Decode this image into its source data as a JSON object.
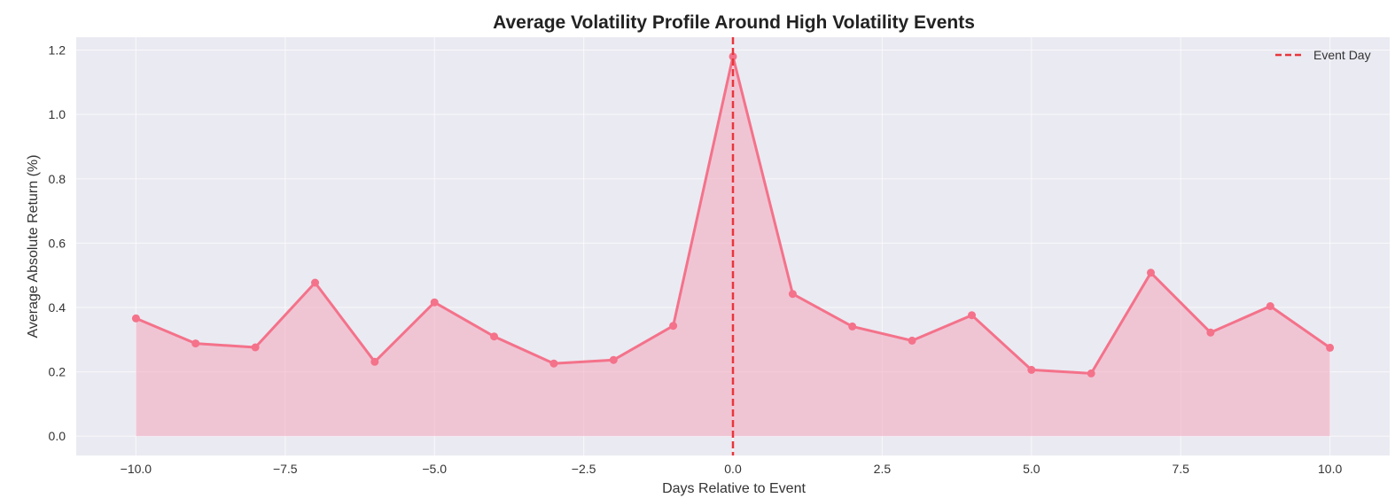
{
  "chart_data": {
    "type": "line",
    "title": "Average Volatility Profile Around High Volatility Events",
    "xlabel": "Days Relative to Event",
    "ylabel": "Average Absolute Return (%)",
    "xlim": [
      -11,
      11
    ],
    "ylim": [
      -0.06,
      1.24
    ],
    "xticks": [
      -10,
      -7.5,
      -5,
      -2.5,
      0,
      2.5,
      5,
      7.5,
      10
    ],
    "xtick_labels": [
      "−10.0",
      "−7.5",
      "−5.0",
      "−2.5",
      "0.0",
      "2.5",
      "5.0",
      "7.5",
      "10.0"
    ],
    "yticks": [
      0,
      0.2,
      0.4,
      0.6,
      0.8,
      1.0,
      1.2
    ],
    "ytick_labels": [
      "0.0",
      "0.2",
      "0.4",
      "0.6",
      "0.8",
      "1.0",
      "1.2"
    ],
    "grid": true,
    "legend_position": "top-right",
    "series": [
      {
        "x": [
          -10,
          -9,
          -8,
          -7,
          -6,
          -5,
          -4,
          -3,
          -2,
          -1,
          0,
          1,
          2,
          3,
          4,
          5,
          6,
          7,
          8,
          9,
          10
        ],
        "values": [
          0.366,
          0.288,
          0.276,
          0.477,
          0.231,
          0.416,
          0.31,
          0.226,
          0.237,
          0.343,
          1.18,
          0.442,
          0.341,
          0.297,
          0.376,
          0.206,
          0.195,
          0.508,
          0.322,
          0.404,
          0.275
        ],
        "color": "#f4728a",
        "fill_color": "#f2a6bb"
      }
    ],
    "annotations": [
      {
        "type": "vline",
        "x": 0,
        "label": "Event Day",
        "color": "#e8363b",
        "style": "dashed"
      }
    ],
    "colors": {
      "plot_background": "#eaeaf2",
      "grid": "#ffffff"
    }
  }
}
